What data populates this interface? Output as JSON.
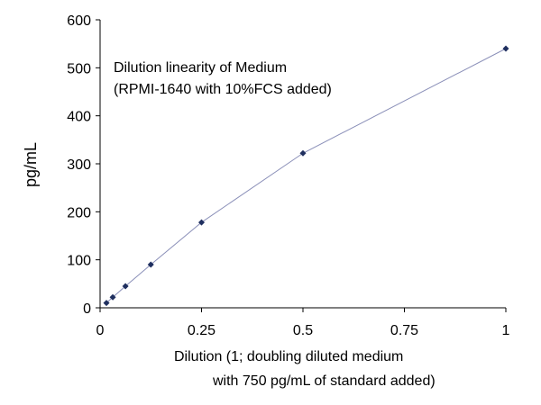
{
  "chart_data": {
    "type": "scatter",
    "title": "",
    "annotation": [
      "Dilution linearity of Medium",
      "(RPMI-1640 with 10%FCS added)"
    ],
    "xlabel": [
      "Dilution (1; doubling diluted medium",
      "with 750 pg/mL of standard added)"
    ],
    "ylabel": "pg/mL",
    "xlim": [
      0,
      1
    ],
    "ylim": [
      0,
      600
    ],
    "xticks": [
      0,
      0.25,
      0.5,
      0.75,
      1
    ],
    "xtick_labels": [
      "0",
      "0.25",
      "0.5",
      "0.75",
      "1"
    ],
    "yticks": [
      0,
      100,
      200,
      300,
      400,
      500,
      600
    ],
    "ytick_labels": [
      "0",
      "100",
      "200",
      "300",
      "400",
      "500",
      "600"
    ],
    "grid": false,
    "legend": "none",
    "series": [
      {
        "x": [
          0.015625,
          0.03125,
          0.0625,
          0.125,
          0.25,
          0.5,
          1
        ],
        "y": [
          10,
          22,
          45,
          90,
          178,
          322,
          540
        ],
        "marker_color": "#1f2f5f",
        "line_color": "#8a8fb8"
      }
    ]
  }
}
